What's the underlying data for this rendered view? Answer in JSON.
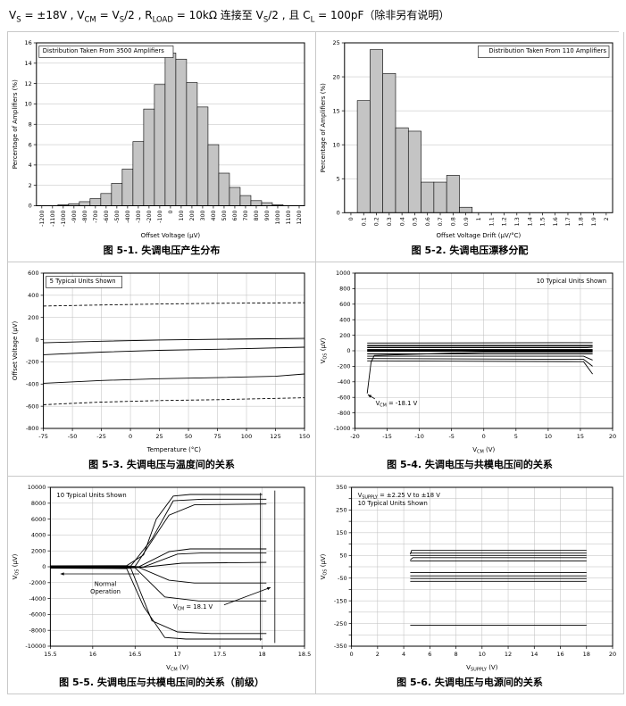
{
  "header": {
    "segments": [
      [
        "V"
      ],
      [
        "S",
        1
      ],
      [
        " = ±18V , V"
      ],
      [
        "CM",
        1
      ],
      [
        " = V"
      ],
      [
        "S",
        1
      ],
      [
        "/2 , R"
      ],
      [
        "LOAD",
        1
      ],
      [
        " = 10k"
      ],
      [
        "Ω"
      ],
      [
        " 连接至 V"
      ],
      [
        "S",
        1
      ],
      [
        "/2 , 且 C"
      ],
      [
        "L",
        1
      ],
      [
        " = 100pF（除非另有说明）"
      ]
    ]
  },
  "chart_data": [
    {
      "type": "bar",
      "caption": "图 5-1. 失调电压产生分布",
      "inner_title": [
        [
          [
            "Distribution Taken From 3500 Amplifiers"
          ]
        ]
      ],
      "inner_title_pos": "tl",
      "inner_title_box": true,
      "bar_fill": "#c4c4c4",
      "xlabel": [
        [
          "Offset Voltage (μV)"
        ]
      ],
      "ylabel": [
        [
          "Percentage of Amplifiers (%)"
        ]
      ],
      "categories": [
        "-1200",
        "-1100",
        "-1000",
        "-900",
        "-800",
        "-700",
        "-600",
        "-500",
        "-400",
        "-300",
        "-200",
        "-100",
        "0",
        "100",
        "200",
        "300",
        "400",
        "500",
        "600",
        "700",
        "800",
        "900",
        "1000",
        "1100",
        "1200"
      ],
      "values": [
        0,
        0,
        0.1,
        0.2,
        0.4,
        0.7,
        1.2,
        2.2,
        3.6,
        6.3,
        9.5,
        11.9,
        15.0,
        14.4,
        12.1,
        9.7,
        6.0,
        3.2,
        1.8,
        1.0,
        0.5,
        0.3,
        0.1,
        0,
        0
      ],
      "ylim": [
        0,
        16
      ],
      "ytick_step": 2
    },
    {
      "type": "bar",
      "caption": "图 5-2. 失调电压漂移分配",
      "inner_title": [
        [
          [
            "Distribution Taken From 110 Amplifiers"
          ]
        ]
      ],
      "inner_title_pos": "tr",
      "inner_title_box": true,
      "bar_fill": "#c4c4c4",
      "xlabel": [
        [
          "Offset Voltage Drift (μV/°C)"
        ]
      ],
      "ylabel": [
        [
          "Percentage of Amplifiers (%)"
        ]
      ],
      "categories": [
        "0",
        "0.1",
        "0.2",
        "0.3",
        "0.4",
        "0.5",
        "0.6",
        "0.7",
        "0.8",
        "0.9",
        "1",
        "1.1",
        "1.2",
        "1.3",
        "1.4",
        "1.5",
        "1.6",
        "1.7",
        "1.8",
        "1.9",
        "2"
      ],
      "values": [
        0,
        16.5,
        24,
        20.5,
        12.5,
        12,
        4.5,
        4.5,
        5.5,
        0.8,
        0,
        0,
        0,
        0,
        0,
        0,
        0,
        0,
        0,
        0,
        0
      ],
      "ylim": [
        0,
        25
      ],
      "ytick_step": 5
    },
    {
      "type": "line",
      "caption": "图 5-3. 失调电压与温度间的关系",
      "inner_title": [
        [
          [
            "5 Typical Units Shown"
          ]
        ]
      ],
      "inner_title_pos": "tl",
      "inner_title_box": true,
      "xlabel": [
        [
          "Temperature (°C)"
        ]
      ],
      "ylabel": [
        [
          "Offset Voltage (μV)"
        ]
      ],
      "xlim": [
        -75,
        150
      ],
      "xtick_step": 25,
      "ylim": [
        -800,
        600
      ],
      "ytick_step": 200,
      "series": [
        {
          "dash": true,
          "points": [
            [
              -75,
              303
            ],
            [
              -25,
              313
            ],
            [
              25,
              322
            ],
            [
              75,
              328
            ],
            [
              150,
              333
            ]
          ]
        },
        {
          "points": [
            [
              -75,
              -28
            ],
            [
              -25,
              -14
            ],
            [
              25,
              -3
            ],
            [
              75,
              4
            ],
            [
              150,
              12
            ]
          ]
        },
        {
          "points": [
            [
              -75,
              -135
            ],
            [
              -25,
              -112
            ],
            [
              25,
              -96
            ],
            [
              75,
              -86
            ],
            [
              150,
              -68
            ]
          ]
        },
        {
          "points": [
            [
              -75,
              -393
            ],
            [
              -25,
              -368
            ],
            [
              25,
              -352
            ],
            [
              75,
              -342
            ],
            [
              125,
              -330
            ],
            [
              150,
              -309
            ]
          ]
        },
        {
          "dash": true,
          "points": [
            [
              -75,
              -586
            ],
            [
              -25,
              -563
            ],
            [
              25,
              -549
            ],
            [
              75,
              -541
            ],
            [
              150,
              -523
            ]
          ]
        }
      ]
    },
    {
      "type": "line",
      "caption": "图 5-4. 失调电压与共模电压间的关系",
      "inner_title": [
        [
          [
            "10 Typical Units Shown"
          ]
        ]
      ],
      "inner_title_pos": "tr",
      "inner_title_box": false,
      "xlabel": [
        [
          "V"
        ],
        [
          "CM",
          1
        ],
        [
          " (V)"
        ]
      ],
      "ylabel": [
        [
          "V"
        ],
        [
          "OS",
          1
        ],
        [
          " (μV)"
        ]
      ],
      "xlim": [
        -20,
        20
      ],
      "xtick_step": 5,
      "ylim": [
        -1000,
        1000
      ],
      "ytick_step": 200,
      "series": [
        {
          "w": 3,
          "points": [
            [
              -18.1,
              5
            ],
            [
              16.9,
              5
            ]
          ]
        },
        {
          "points": [
            [
              -18.1,
              40
            ],
            [
              16,
              40
            ],
            [
              16.9,
              45
            ]
          ]
        },
        {
          "points": [
            [
              -18.1,
              70
            ],
            [
              16.9,
              70
            ]
          ]
        },
        {
          "points": [
            [
              -18.1,
              100
            ],
            [
              16.9,
              105
            ]
          ]
        },
        {
          "points": [
            [
              -18.1,
              -40
            ],
            [
              16.9,
              -40
            ]
          ]
        },
        {
          "points": [
            [
              -18.1,
              -70
            ],
            [
              15.5,
              -70
            ],
            [
              16.9,
              -120
            ]
          ]
        },
        {
          "points": [
            [
              -18.1,
              -100
            ],
            [
              15.5,
              -110
            ],
            [
              16.9,
              -200
            ]
          ]
        },
        {
          "points": [
            [
              -18.1,
              -130
            ],
            [
              15.5,
              -140
            ],
            [
              16.9,
              -300
            ]
          ]
        },
        {
          "points": [
            [
              -18.1,
              60
            ],
            [
              0,
              60
            ],
            [
              16.9,
              60
            ]
          ]
        },
        {
          "points": [
            [
              -18.1,
              -550
            ],
            [
              -17.5,
              -150
            ],
            [
              -17,
              -60
            ],
            [
              0,
              -20
            ],
            [
              16.9,
              -20
            ]
          ]
        }
      ],
      "annotations": [
        {
          "lines": [
            [
              [
                "V"
              ],
              [
                "CM",
                1
              ],
              [
                " = -18.1 V"
              ]
            ]
          ],
          "x": -16.8,
          "y": -700,
          "anchor": "start",
          "arrows": [
            [
              -16.9,
              -620,
              -18.0,
              -565
            ]
          ]
        }
      ]
    },
    {
      "type": "line",
      "caption": "图 5-5. 失调电压与共模电压间的关系（前级）",
      "inner_title": [
        [
          [
            "10 Typical Units Shown"
          ]
        ]
      ],
      "inner_title_pos": "tl",
      "inner_title_box": false,
      "xlabel": [
        [
          "V"
        ],
        [
          "CM",
          1
        ],
        [
          " (V)"
        ]
      ],
      "ylabel": [
        [
          "V"
        ],
        [
          "OS",
          1
        ],
        [
          " (μV)"
        ]
      ],
      "xlim": [
        15.5,
        18.5
      ],
      "xtick_step": 0.5,
      "ylim": [
        -10000,
        10000
      ],
      "ytick_step": 2000,
      "series": [
        {
          "points": [
            [
              15.5,
              120
            ],
            [
              16.4,
              130
            ],
            [
              16.6,
              1500
            ],
            [
              16.75,
              6000
            ],
            [
              16.95,
              8900
            ],
            [
              17.15,
              9100
            ],
            [
              18.0,
              9100
            ]
          ]
        },
        {
          "points": [
            [
              15.5,
              80
            ],
            [
              16.45,
              90
            ],
            [
              16.7,
              3500
            ],
            [
              16.95,
              8300
            ],
            [
              17.3,
              8500
            ],
            [
              18.05,
              8500
            ]
          ]
        },
        {
          "points": [
            [
              15.5,
              40
            ],
            [
              16.5,
              60
            ],
            [
              16.9,
              6500
            ],
            [
              17.2,
              7800
            ],
            [
              18.05,
              7900
            ]
          ]
        },
        {
          "points": [
            [
              15.5,
              15
            ],
            [
              16.55,
              25
            ],
            [
              16.9,
              1900
            ],
            [
              17.15,
              2250
            ],
            [
              18.05,
              2250
            ]
          ]
        },
        {
          "points": [
            [
              15.5,
              -15
            ],
            [
              16.6,
              -20
            ],
            [
              17.0,
              1600
            ],
            [
              17.3,
              1750
            ],
            [
              18.05,
              1750
            ]
          ]
        },
        {
          "points": [
            [
              15.5,
              -45
            ],
            [
              16.6,
              -60
            ],
            [
              17.05,
              450
            ],
            [
              18.05,
              550
            ]
          ]
        },
        {
          "points": [
            [
              15.5,
              -80
            ],
            [
              16.55,
              -100
            ],
            [
              16.9,
              -1700
            ],
            [
              17.2,
              -2050
            ],
            [
              18.05,
              -2050
            ]
          ]
        },
        {
          "points": [
            [
              15.5,
              -110
            ],
            [
              16.5,
              -140
            ],
            [
              16.85,
              -3800
            ],
            [
              17.25,
              -4300
            ],
            [
              18.05,
              -4300
            ]
          ]
        },
        {
          "points": [
            [
              15.5,
              -140
            ],
            [
              16.45,
              -180
            ],
            [
              16.7,
              -6800
            ],
            [
              17.0,
              -8200
            ],
            [
              17.4,
              -8400
            ],
            [
              18.05,
              -8400
            ]
          ]
        },
        {
          "points": [
            [
              15.5,
              -170
            ],
            [
              16.4,
              -220
            ],
            [
              16.6,
              -5000
            ],
            [
              16.85,
              -8900
            ],
            [
              17.1,
              -9100
            ],
            [
              18.0,
              -9100
            ]
          ]
        },
        {
          "w": 0.8,
          "points": [
            [
              17.98,
              9300
            ],
            [
              17.98,
              -9300
            ]
          ]
        },
        {
          "w": 0.8,
          "points": [
            [
              18.15,
              9600
            ],
            [
              18.15,
              -9600
            ]
          ]
        }
      ],
      "annotations": [
        {
          "lines": [
            [
              [
                "Normal"
              ]
            ],
            [
              [
                "Operation"
              ]
            ]
          ],
          "x": 16.15,
          "y": -2400,
          "anchor": "middle",
          "arrows": [
            [
              16.55,
              -900,
              15.62,
              -900
            ]
          ]
        },
        {
          "lines": [
            [
              [
                "V"
              ],
              [
                "CM",
                1
              ],
              [
                " = 18.1 V"
              ]
            ]
          ],
          "x": 16.95,
          "y": -5300,
          "anchor": "start",
          "arrows": [
            [
              17.55,
              -4800,
              18.1,
              -2600
            ]
          ]
        }
      ]
    },
    {
      "type": "line",
      "caption": "图 5-6. 失调电压与电源间的关系",
      "inner_title": [
        [
          [
            "V"
          ],
          [
            "SUPPLY",
            1
          ],
          [
            " = ±2.25 V to ±18 V"
          ]
        ],
        [
          [
            "10 Typical Units Shown"
          ]
        ]
      ],
      "inner_title_pos": "tl",
      "inner_title_box": false,
      "xlabel": [
        [
          "V"
        ],
        [
          "SUPPLY",
          1
        ],
        [
          " (V)"
        ]
      ],
      "ylabel": [
        [
          "V"
        ],
        [
          "OS",
          1
        ],
        [
          " (μV)"
        ]
      ],
      "xlim": [
        0,
        20
      ],
      "xtick_step": 2,
      "ylim": [
        -350,
        350
      ],
      "ytick_step": 50,
      "ylabel_every": 2,
      "series": [
        {
          "points": [
            [
              4.5,
              55
            ],
            [
              4.6,
              72
            ],
            [
              18,
              72
            ]
          ]
        },
        {
          "points": [
            [
              4.5,
              60
            ],
            [
              18,
              60
            ]
          ]
        },
        {
          "points": [
            [
              4.5,
              50
            ],
            [
              18,
              50
            ]
          ]
        },
        {
          "points": [
            [
              4.5,
              30
            ],
            [
              4.7,
              40
            ],
            [
              18,
              40
            ]
          ]
        },
        {
          "points": [
            [
              4.5,
              26
            ],
            [
              18,
              26
            ]
          ]
        },
        {
          "points": [
            [
              4.5,
              -26
            ],
            [
              18,
              -26
            ]
          ]
        },
        {
          "points": [
            [
              4.5,
              -40
            ],
            [
              18,
              -40
            ]
          ]
        },
        {
          "points": [
            [
              4.5,
              -52
            ],
            [
              18,
              -52
            ]
          ]
        },
        {
          "points": [
            [
              4.5,
              -64
            ],
            [
              18,
              -64
            ]
          ]
        },
        {
          "points": [
            [
              4.5,
              -258
            ],
            [
              18,
              -258
            ]
          ]
        }
      ]
    }
  ]
}
